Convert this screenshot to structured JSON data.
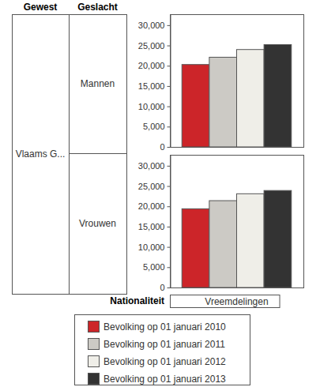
{
  "row_headers": {
    "columns": [
      "Gewest",
      "Geslacht"
    ],
    "region": "Vlaams G..."
  },
  "chart_data": [
    {
      "type": "bar",
      "title": "Mannen",
      "x_label": "Nationaliteit",
      "categories": [
        "Vreemdelingen"
      ],
      "series": [
        {
          "name": "Bevolking op 01 januari 2010",
          "color": "#cc2529",
          "values": [
            20300
          ]
        },
        {
          "name": "Bevolking op 01 januari 2011",
          "color": "#cccac5",
          "values": [
            22100
          ]
        },
        {
          "name": "Bevolking op 01 januari 2012",
          "color": "#efeee8",
          "values": [
            24000
          ]
        },
        {
          "name": "Bevolking op 01 januari 2013",
          "color": "#333333",
          "values": [
            25200
          ]
        }
      ],
      "ylim": [
        0,
        32700
      ],
      "yticks": [
        0,
        {
          "value": 5000,
          "label": "5,000"
        },
        {
          "value": 10000,
          "label": "10,000"
        },
        {
          "value": 15000,
          "label": "15,000"
        },
        {
          "value": 20000,
          "label": "20,000"
        },
        {
          "value": 25000,
          "label": "25,000"
        },
        {
          "value": 30000,
          "label": "30,000"
        }
      ],
      "grid": false,
      "legend": "bottom"
    },
    {
      "type": "bar",
      "title": "Vrouwen",
      "x_label": "Nationaliteit",
      "categories": [
        "Vreemdelingen"
      ],
      "series": [
        {
          "name": "Bevolking op 01 januari 2010",
          "color": "#cc2529",
          "values": [
            19400
          ]
        },
        {
          "name": "Bevolking op 01 januari 2011",
          "color": "#cccac5",
          "values": [
            21400
          ]
        },
        {
          "name": "Bevolking op 01 januari 2012",
          "color": "#efeee8",
          "values": [
            23100
          ]
        },
        {
          "name": "Bevolking op 01 januari 2013",
          "color": "#333333",
          "values": [
            23900
          ]
        }
      ],
      "ylim": [
        0,
        32700
      ],
      "yticks": [
        0,
        {
          "value": 5000,
          "label": "5,000"
        },
        {
          "value": 10000,
          "label": "10,000"
        },
        {
          "value": 15000,
          "label": "15,000"
        },
        {
          "value": 20000,
          "label": "20,000"
        },
        {
          "value": 25000,
          "label": "25,000"
        },
        {
          "value": 30000,
          "label": "30,000"
        }
      ],
      "grid": false,
      "legend": "bottom"
    }
  ]
}
